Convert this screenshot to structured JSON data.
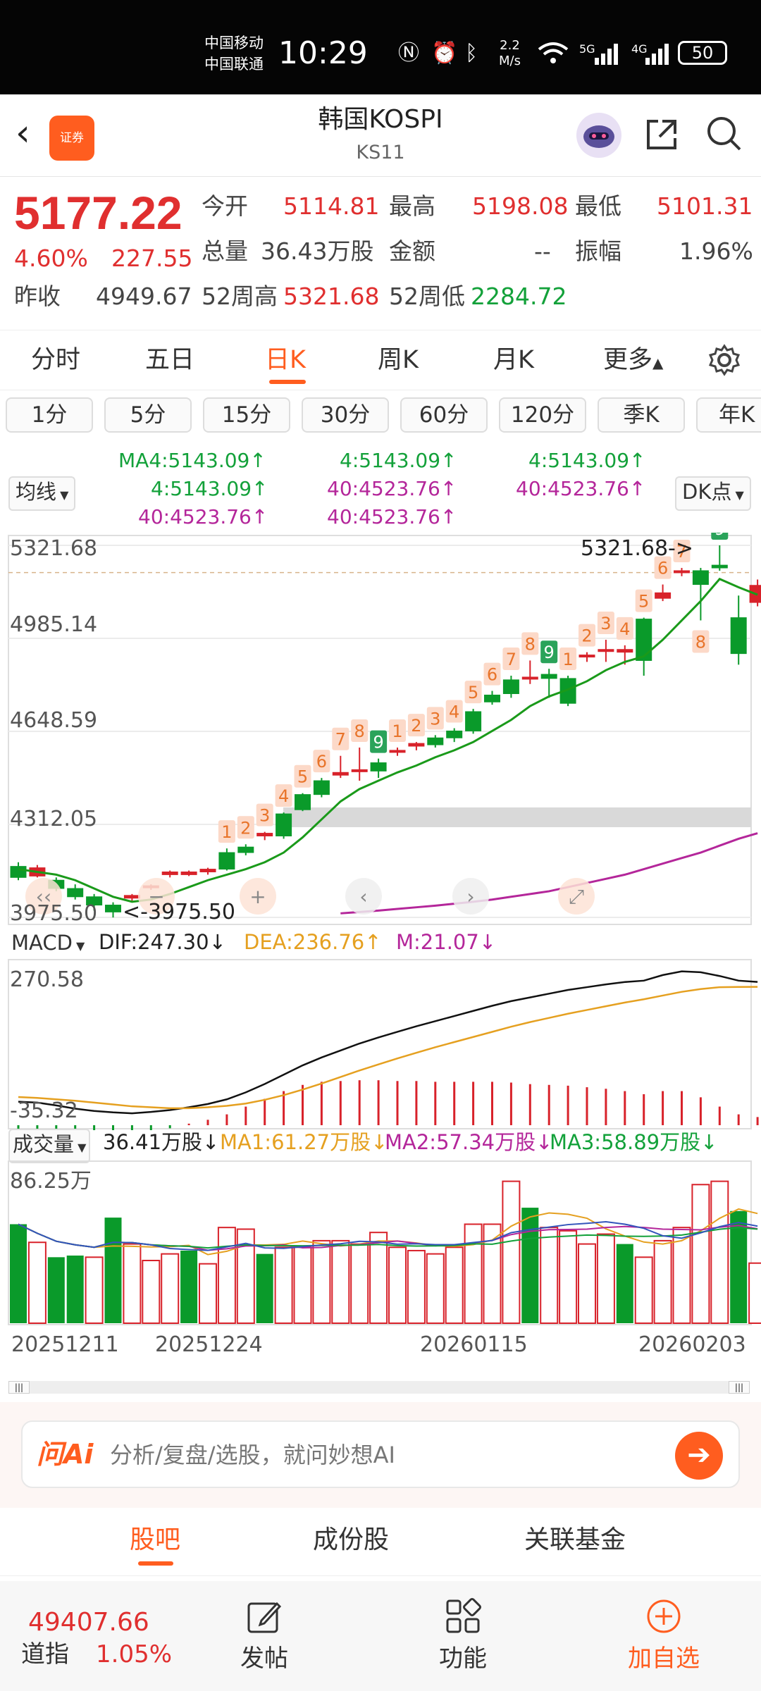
{
  "status_bar": {
    "carrier_1": "中国移动",
    "carrier_2": "中国联通",
    "time": "10:29",
    "net_speed_value": "2.2",
    "net_speed_unit": "M/s",
    "signal_1": "5G",
    "signal_2": "4G",
    "battery": "50"
  },
  "header": {
    "logo_text": "证券",
    "title": "韩国KOSPI",
    "code": "KS11"
  },
  "quote": {
    "price": "5177.22",
    "change_pct": "4.60%",
    "change_amt": "227.55",
    "open_label": "今开",
    "open_value": "5114.81",
    "high_label": "最高",
    "high_value": "5198.08",
    "low_label": "最低",
    "low_value": "5101.31",
    "volume_label": "总量",
    "volume_value": "36.43万股",
    "amount_label": "金额",
    "amount_value": "--",
    "amplitude_label": "振幅",
    "amplitude_value": "1.96%",
    "prev_close_label": "昨收",
    "prev_close_value": "4949.67",
    "high52_label": "52周高",
    "high52_value": "5321.68",
    "low52_label": "52周低",
    "low52_value": "2284.72"
  },
  "period_tabs": {
    "t1": "分时",
    "t2": "五日",
    "t3": "日K",
    "t4": "周K",
    "t5": "月K",
    "more": "更多"
  },
  "minute_tabs": [
    "1分",
    "5分",
    "15分",
    "30分",
    "60分",
    "120分",
    "季K",
    "年K"
  ],
  "ma_panel": {
    "selector": "均线",
    "dk_button": "DK点",
    "col1_row1": "MA4:5143.09",
    "col1_row2": "4:5143.09",
    "col1_row3": "40:4523.76",
    "col2_row1": "4:5143.09",
    "col2_row2": "40:4523.76",
    "col2_row3": "40:4523.76",
    "col3_row1": "4:5143.09",
    "col3_row2": "40:4523.76",
    "up_arrow": "↑"
  },
  "price_chart": {
    "y_labels": [
      "5321.68",
      "4985.14",
      "4648.59",
      "4312.05",
      "3975.50"
    ],
    "high_marker": "5321.68->",
    "low_marker": "<-3975.50",
    "colors": {
      "up": "#d8222a",
      "down": "#0a9a2a",
      "ma4": "#1a9a1a",
      "ma40": "#b4269a",
      "seq_bg": "#fcd9c8",
      "seq_text": "#e8742a"
    }
  },
  "macd": {
    "selector": "MACD",
    "dif": "DIF:247.30",
    "dea": "DEA:236.76",
    "m": "M:21.07",
    "dif_arrow": "↓",
    "dea_arrow": "↑",
    "m_arrow": "↓",
    "top_label": "270.58",
    "bottom_label": "-35.32"
  },
  "volume": {
    "selector": "成交量",
    "value": "36.41万股",
    "ma1": "MA1:61.27万股",
    "ma2": "MA2:57.34万股",
    "ma3": "MA3:58.89万股",
    "arrow": "↓",
    "top_label": "86.25万",
    "dates": [
      "20251211",
      "20251224",
      "20260115",
      "20260203"
    ]
  },
  "ai_bar": {
    "logo": "问Ai",
    "placeholder": "分析/复盘/选股，就问妙想AI"
  },
  "bottom_tabs": {
    "t1": "股吧",
    "t2": "成份股",
    "t3": "关联基金"
  },
  "bottom_nav": {
    "index_value": "49407.66",
    "index_name": "道指",
    "index_change": "1.05%",
    "post": "发帖",
    "functions": "功能",
    "add": "加自选"
  },
  "chart_data": {
    "type": "candlestick",
    "title": "",
    "dates_shown": [
      "20251211",
      "20251224",
      "20260115",
      "20260203"
    ],
    "ylim": [
      3975.5,
      5321.68
    ],
    "y_ticks": [
      5321.68,
      4985.14,
      4648.59,
      4312.05,
      3975.5
    ],
    "candles": [
      {
        "o": 4160,
        "h": 4175,
        "l": 4110,
        "c": 4120
      },
      {
        "o": 4125,
        "h": 4165,
        "l": 4120,
        "c": 4155
      },
      {
        "o": 4110,
        "h": 4120,
        "l": 4070,
        "c": 4080
      },
      {
        "o": 4080,
        "h": 4095,
        "l": 4040,
        "c": 4050
      },
      {
        "o": 4050,
        "h": 4060,
        "l": 4000,
        "c": 4020
      },
      {
        "o": 4020,
        "h": 4030,
        "l": 3975,
        "c": 3995
      },
      {
        "o": 4045,
        "h": 4060,
        "l": 4035,
        "c": 4055
      },
      {
        "o": 4085,
        "h": 4095,
        "l": 4075,
        "c": 4090
      },
      {
        "o": 4130,
        "h": 4145,
        "l": 4120,
        "c": 4140
      },
      {
        "o": 4130,
        "h": 4145,
        "l": 4125,
        "c": 4140
      },
      {
        "o": 4140,
        "h": 4155,
        "l": 4130,
        "c": 4150
      },
      {
        "o": 4210,
        "h": 4225,
        "l": 4145,
        "c": 4150
      },
      {
        "o": 4230,
        "h": 4240,
        "l": 4200,
        "c": 4210
      },
      {
        "o": 4270,
        "h": 4285,
        "l": 4255,
        "c": 4280
      },
      {
        "o": 4350,
        "h": 4355,
        "l": 4260,
        "c": 4270
      },
      {
        "o": 4420,
        "h": 4425,
        "l": 4360,
        "c": 4365
      },
      {
        "o": 4470,
        "h": 4480,
        "l": 4410,
        "c": 4420
      },
      {
        "o": 4490,
        "h": 4560,
        "l": 4480,
        "c": 4500
      },
      {
        "o": 4505,
        "h": 4590,
        "l": 4470,
        "c": 4510
      },
      {
        "o": 4535,
        "h": 4550,
        "l": 4480,
        "c": 4505
      },
      {
        "o": 4575,
        "h": 4590,
        "l": 4560,
        "c": 4580
      },
      {
        "o": 4595,
        "h": 4610,
        "l": 4580,
        "c": 4605
      },
      {
        "o": 4625,
        "h": 4635,
        "l": 4590,
        "c": 4600
      },
      {
        "o": 4650,
        "h": 4660,
        "l": 4610,
        "c": 4625
      },
      {
        "o": 4720,
        "h": 4730,
        "l": 4640,
        "c": 4650
      },
      {
        "o": 4780,
        "h": 4795,
        "l": 4745,
        "c": 4755
      },
      {
        "o": 4835,
        "h": 4850,
        "l": 4770,
        "c": 4785
      },
      {
        "o": 4840,
        "h": 4905,
        "l": 4820,
        "c": 4845
      },
      {
        "o": 4855,
        "h": 4875,
        "l": 4770,
        "c": 4840
      },
      {
        "o": 4840,
        "h": 4850,
        "l": 4740,
        "c": 4750
      },
      {
        "o": 4920,
        "h": 4935,
        "l": 4900,
        "c": 4925
      },
      {
        "o": 4940,
        "h": 4980,
        "l": 4900,
        "c": 4945
      },
      {
        "o": 4935,
        "h": 4960,
        "l": 4890,
        "c": 4945
      },
      {
        "o": 5055,
        "h": 5060,
        "l": 4850,
        "c": 4905
      },
      {
        "o": 5130,
        "h": 5180,
        "l": 5120,
        "c": 5150
      },
      {
        "o": 5225,
        "h": 5240,
        "l": 5210,
        "c": 5230
      },
      {
        "o": 5230,
        "h": 5240,
        "l": 5050,
        "c": 5180
      },
      {
        "o": 5250,
        "h": 5321.68,
        "l": 5230,
        "c": 5240
      },
      {
        "o": 5060,
        "h": 5140,
        "l": 4890,
        "c": 4930
      },
      {
        "o": 5115,
        "h": 5198,
        "l": 5101,
        "c": 5177
      }
    ],
    "ma4": [
      4150,
      4140,
      4130,
      4110,
      4080,
      4050,
      4032,
      4040,
      4060,
      4085,
      4110,
      4130,
      4150,
      4175,
      4210,
      4265,
      4330,
      4395,
      4440,
      4470,
      4500,
      4525,
      4555,
      4580,
      4610,
      4650,
      4690,
      4740,
      4775,
      4800,
      4830,
      4870,
      4900,
      4920,
      4980,
      5050,
      5120,
      5200,
      5170,
      5143.09
    ],
    "ma40_start_index": 17,
    "ma40": [
      3990,
      3995,
      4000,
      4006,
      4012,
      4018,
      4025,
      4032,
      4040,
      4050,
      4060,
      4070,
      4085,
      4100,
      4115,
      4130,
      4150,
      4170,
      4190,
      4210,
      4235,
      4260,
      4523.76
    ],
    "seq_labels": [
      {
        "i": 11,
        "t": "1"
      },
      {
        "i": 12,
        "t": "2"
      },
      {
        "i": 13,
        "t": "3"
      },
      {
        "i": 14,
        "t": "4"
      },
      {
        "i": 15,
        "t": "5"
      },
      {
        "i": 16,
        "t": "6"
      },
      {
        "i": 17,
        "t": "7"
      },
      {
        "i": 18,
        "t": "8"
      },
      {
        "i": 19,
        "t": "9",
        "green": true
      },
      {
        "i": 20,
        "t": "1"
      },
      {
        "i": 21,
        "t": "2"
      },
      {
        "i": 22,
        "t": "3"
      },
      {
        "i": 23,
        "t": "4"
      },
      {
        "i": 24,
        "t": "5"
      },
      {
        "i": 25,
        "t": "6"
      },
      {
        "i": 26,
        "t": "7"
      },
      {
        "i": 27,
        "t": "8"
      },
      {
        "i": 28,
        "t": "9",
        "green": true
      },
      {
        "i": 29,
        "t": "1"
      },
      {
        "i": 30,
        "t": "2"
      },
      {
        "i": 31,
        "t": "3"
      },
      {
        "i": 32,
        "t": "4"
      },
      {
        "i": 33,
        "t": "5"
      },
      {
        "i": 34,
        "t": "6"
      },
      {
        "i": 35,
        "t": "7"
      },
      {
        "i": 36,
        "t": "8",
        "below": true
      },
      {
        "i": 37,
        "t": "9",
        "green": true
      }
    ],
    "macd_dif": [
      -10,
      -12,
      -18,
      -25,
      -30,
      -33,
      -35,
      -32,
      -28,
      -22,
      -15,
      -5,
      10,
      28,
      48,
      68,
      85,
      100,
      115,
      128,
      140,
      152,
      163,
      174,
      185,
      196,
      206,
      214,
      222,
      230,
      236,
      242,
      247,
      250,
      262,
      270,
      268,
      260,
      250,
      247.3
    ],
    "macd_dea": [
      0,
      -2,
      -5,
      -8,
      -12,
      -16,
      -20,
      -22,
      -24,
      -24,
      -22,
      -19,
      -14,
      -6,
      4,
      16,
      29,
      43,
      57,
      70,
      83,
      95,
      107,
      118,
      129,
      140,
      151,
      161,
      170,
      179,
      187,
      195,
      203,
      210,
      218,
      226,
      232,
      236,
      236.5,
      236.76
    ],
    "macd_m": [
      -20,
      -22,
      -26,
      -34,
      -36,
      -34,
      -30,
      -20,
      -8,
      4,
      14,
      28,
      48,
      68,
      88,
      104,
      112,
      114,
      116,
      116,
      114,
      114,
      112,
      112,
      112,
      112,
      110,
      106,
      104,
      102,
      98,
      94,
      88,
      80,
      88,
      88,
      72,
      48,
      28,
      21.07
    ],
    "volume_values": [
      60,
      49,
      40,
      41,
      40,
      64,
      48,
      38,
      42,
      44,
      36,
      58,
      57,
      42,
      46,
      46,
      50,
      50,
      48,
      55,
      46,
      44,
      42,
      46,
      60,
      60,
      86,
      70,
      58,
      56,
      48,
      54,
      48,
      40,
      50,
      58,
      84,
      86,
      68,
      36.41
    ],
    "volume_up": [
      false,
      true,
      false,
      false,
      true,
      false,
      true,
      true,
      true,
      false,
      true,
      true,
      true,
      false,
      true,
      true,
      true,
      true,
      true,
      true,
      true,
      true,
      true,
      true,
      true,
      true,
      true,
      false,
      true,
      true,
      true,
      true,
      false,
      true,
      true,
      true,
      true,
      true,
      false,
      true
    ]
  }
}
